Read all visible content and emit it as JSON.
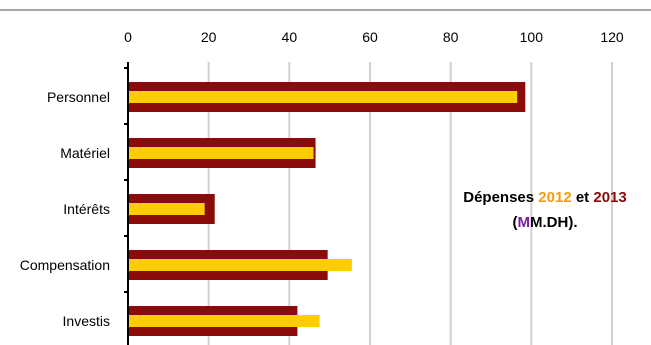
{
  "chart_data": {
    "type": "bar",
    "orientation": "horizontal",
    "categories": [
      "Personnel",
      "Matériel",
      "Intérêts",
      "Compensation",
      "Investis"
    ],
    "series": [
      {
        "name": "2013",
        "color": "#8b0a0a",
        "values": [
          98.5,
          46.5,
          21.5,
          49.5,
          42
        ]
      },
      {
        "name": "2012",
        "color": "#ffcc00",
        "values": [
          96.5,
          46,
          19,
          55.5,
          47.5
        ]
      }
    ],
    "xlim": [
      0,
      120
    ],
    "xticks": [
      "0",
      "20",
      "40",
      "60",
      "80",
      "100",
      "120"
    ],
    "x_axis_position": "top",
    "grid": true,
    "annotation": {
      "parts": [
        {
          "text": "Dépenses ",
          "color": "#000000"
        },
        {
          "text": "2012",
          "color": "#f39c12"
        },
        {
          "text": " et ",
          "color": "#000000"
        },
        {
          "text": "2013",
          "color": "#8b0a0a"
        }
      ],
      "line2": [
        {
          "text": "(",
          "color": "#000000"
        },
        {
          "text": "M",
          "color": "#7b1fa2"
        },
        {
          "text": "M.DH).",
          "color": "#000000"
        }
      ]
    }
  }
}
